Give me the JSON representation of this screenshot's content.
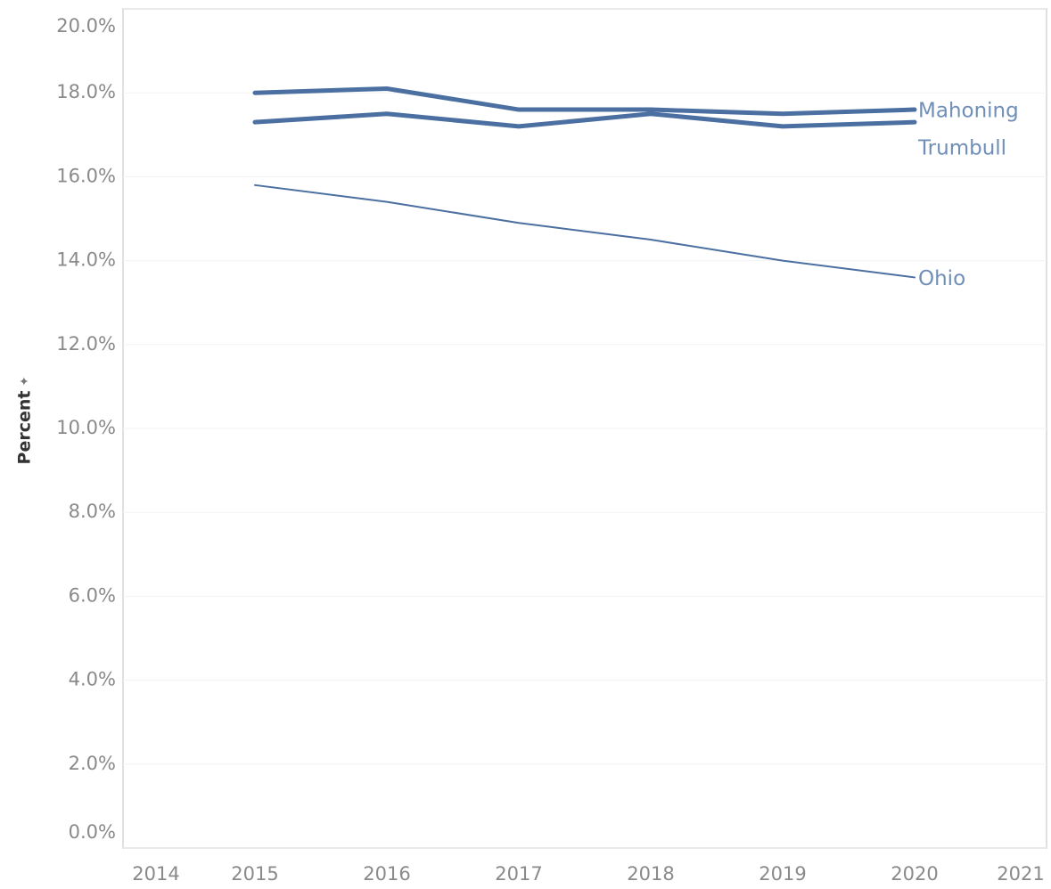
{
  "chart_data": {
    "type": "line",
    "y_label": "Percent",
    "x": [
      2015,
      2016,
      2017,
      2018,
      2019,
      2020
    ],
    "xlim": [
      2014,
      2021
    ],
    "xticks": [
      2014,
      2015,
      2016,
      2017,
      2018,
      2019,
      2020,
      2021
    ],
    "ylim": [
      0,
      20
    ],
    "yticks": [
      {
        "value": 0,
        "label": "0.0%"
      },
      {
        "value": 2,
        "label": "2.0%"
      },
      {
        "value": 4,
        "label": "4.0%"
      },
      {
        "value": 6,
        "label": "6.0%"
      },
      {
        "value": 8,
        "label": "8.0%"
      },
      {
        "value": 10,
        "label": "10.0%"
      },
      {
        "value": 12,
        "label": "12.0%"
      },
      {
        "value": 14,
        "label": "14.0%"
      },
      {
        "value": 16,
        "label": "16.0%"
      },
      {
        "value": 18,
        "label": "18.0%"
      },
      {
        "value": 20,
        "label": "20.0%"
      }
    ],
    "grid": true,
    "series": [
      {
        "name": "Mahoning",
        "color": "#4a6fa0",
        "values": [
          18.0,
          18.1,
          17.6,
          17.6,
          17.5,
          17.6
        ]
      },
      {
        "name": "Trumbull",
        "color": "#4a6fa0",
        "values": [
          17.3,
          17.5,
          17.2,
          17.5,
          17.2,
          17.3
        ]
      },
      {
        "name": "Ohio",
        "color": "#4a6fa0",
        "values": [
          15.8,
          15.4,
          14.9,
          14.5,
          14.0,
          13.6
        ]
      }
    ]
  }
}
